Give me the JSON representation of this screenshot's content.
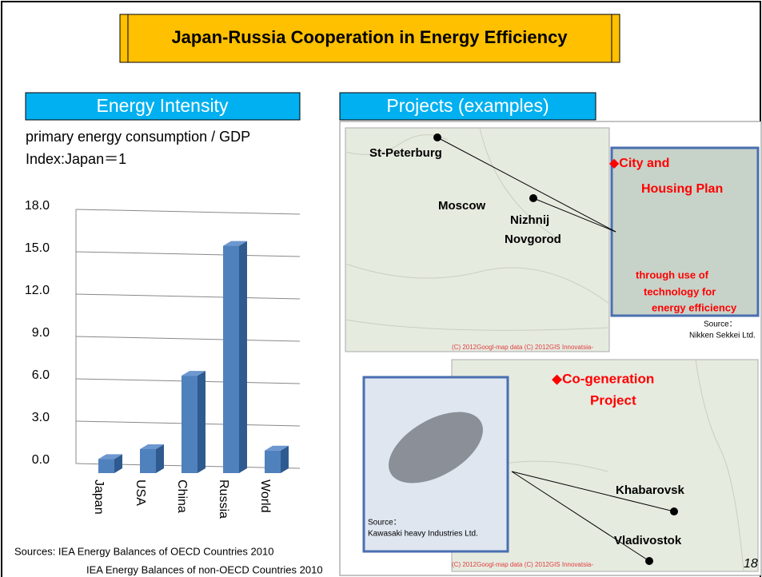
{
  "title": "Japan-Russia Cooperation in Energy Efficiency",
  "left_panel": {
    "header": "Energy Intensity",
    "subtitle_1": "primary energy consumption / GDP",
    "subtitle_2": "Index:Japan＝1",
    "sources_1": "Sources:  IEA Energy Balances of OECD Countries 2010",
    "sources_2": "IEA Energy Balances of non-OECD Countries 2010"
  },
  "chart_data": {
    "type": "bar3d",
    "categories": [
      "Japan",
      "USA",
      "China",
      "Russia",
      "World"
    ],
    "values": [
      1.0,
      1.7,
      6.9,
      16.1,
      1.6
    ],
    "color": "#4f81bd",
    "ylim": [
      0,
      18
    ],
    "yticks": [
      {
        "value": 0,
        "label": "0.0"
      },
      {
        "value": 3,
        "label": "3.0"
      },
      {
        "value": 6,
        "label": "6.0"
      },
      {
        "value": 9,
        "label": "9.0"
      },
      {
        "value": 12,
        "label": "12.0"
      },
      {
        "value": 15,
        "label": "15.0"
      },
      {
        "value": 18,
        "label": "18.0"
      }
    ],
    "grid": true
  },
  "right_panel": {
    "header": "Projects (examples)",
    "map_1": {
      "cities": [
        "St-Peterburg",
        "Moscow",
        "Nizhnij",
        "Novgorod"
      ],
      "copyright": "(C) 2012Googl-map data  (C) 2012GIS Innovatsia-"
    },
    "photo_1": {
      "lines": [
        "◆City and",
        "Housing Plan",
        "through use of",
        "technology for",
        "energy efficiency"
      ],
      "source_label": "Source：",
      "source": "Nikken Sekkei Ltd."
    },
    "map_2": {
      "lines": [
        "◆Co-generation",
        "Project"
      ],
      "cities": [
        "Khabarovsk",
        "Vladivostok"
      ],
      "copyright": "(C) 2012Googl-map data  (C) 2012GIS Innovatsia-"
    },
    "photo_2": {
      "source_label": "Source：",
      "source": "Kawasaki heavy Industries Ltd."
    }
  },
  "page_number": "18"
}
